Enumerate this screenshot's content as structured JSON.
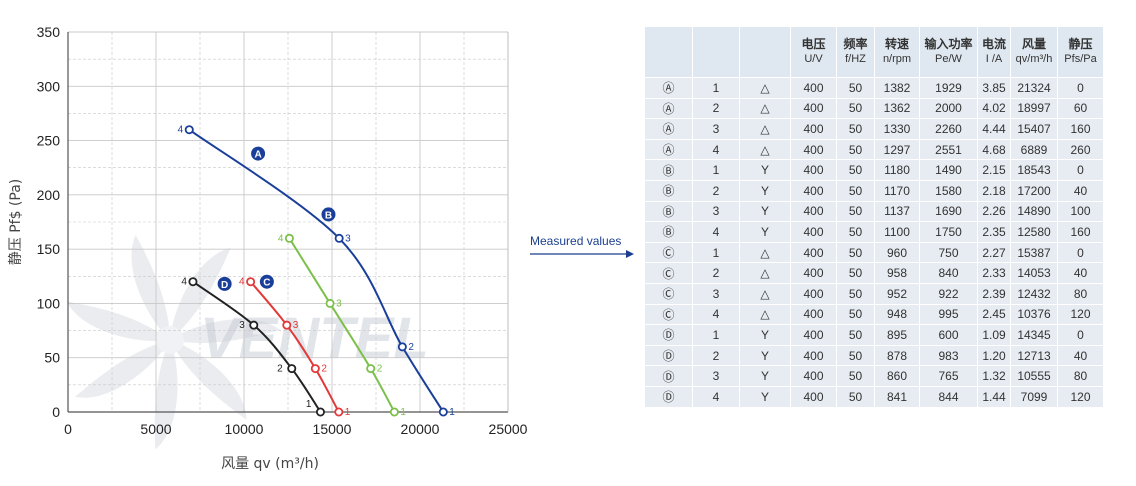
{
  "chart_data": {
    "type": "line",
    "xlabel": "风量 qv (m³/h)",
    "ylabel": "静压 Pf$ (Pa)",
    "xlim": [
      0,
      25000
    ],
    "ylim": [
      0,
      350
    ],
    "x_ticks": [
      "0",
      "5000",
      "10000",
      "15000",
      "20000",
      "25000"
    ],
    "y_ticks": [
      "0",
      "50",
      "100",
      "150",
      "200",
      "250",
      "300",
      "350"
    ],
    "grid": true,
    "watermark": "VENTEL",
    "series": [
      {
        "name": "A",
        "color": "#1a3f9a",
        "points": [
          {
            "x": 21324,
            "y": 0,
            "label": "1"
          },
          {
            "x": 18997,
            "y": 60,
            "label": "2"
          },
          {
            "x": 15407,
            "y": 160,
            "label": "3"
          },
          {
            "x": 6889,
            "y": 260,
            "label": "4"
          }
        ]
      },
      {
        "name": "B",
        "color": "#7cc04b",
        "points": [
          {
            "x": 18543,
            "y": 0,
            "label": "1"
          },
          {
            "x": 17200,
            "y": 40,
            "label": "2"
          },
          {
            "x": 14890,
            "y": 100,
            "label": "3"
          },
          {
            "x": 12580,
            "y": 160,
            "label": "4"
          }
        ]
      },
      {
        "name": "C",
        "color": "#e23a3a",
        "points": [
          {
            "x": 15387,
            "y": 0,
            "label": "1"
          },
          {
            "x": 14053,
            "y": 40,
            "label": "2"
          },
          {
            "x": 12432,
            "y": 80,
            "label": "3"
          },
          {
            "x": 10376,
            "y": 120,
            "label": "4"
          }
        ]
      },
      {
        "name": "D",
        "color": "#222222",
        "points": [
          {
            "x": 14345,
            "y": 0,
            "label": "1"
          },
          {
            "x": 12713,
            "y": 40,
            "label": "2"
          },
          {
            "x": 10555,
            "y": 80,
            "label": "3"
          },
          {
            "x": 7099,
            "y": 120,
            "label": "4"
          }
        ]
      }
    ],
    "series_badges": [
      {
        "series": "A",
        "text": "A",
        "x": 10800,
        "y": 238,
        "color": "#1a3f9a"
      },
      {
        "series": "B",
        "text": "B",
        "x": 14800,
        "y": 182,
        "color": "#1a3f9a"
      },
      {
        "series": "C",
        "text": "C",
        "x": 11300,
        "y": 120,
        "color": "#1a3f9a"
      },
      {
        "series": "D",
        "text": "D",
        "x": 8900,
        "y": 118,
        "color": "#1a3f9a"
      }
    ]
  },
  "arrow_label": "Measured values",
  "table": {
    "headers": [
      {
        "zh": "",
        "unit": ""
      },
      {
        "zh": "",
        "unit": ""
      },
      {
        "zh": "",
        "unit": ""
      },
      {
        "zh": "电压",
        "unit": "U/V"
      },
      {
        "zh": "频率",
        "unit": "f/HZ"
      },
      {
        "zh": "转速",
        "unit": "n/rpm"
      },
      {
        "zh": "输入功率",
        "unit": "Pe/W"
      },
      {
        "zh": "电流",
        "unit": "I /A"
      },
      {
        "zh": "风量",
        "unit": "qv/m³/h"
      },
      {
        "zh": "静压",
        "unit": "Pfs/Pa"
      }
    ],
    "rows": [
      [
        "Ⓐ",
        "1",
        "△",
        "400",
        "50",
        "1382",
        "1929",
        "3.85",
        "21324",
        "0"
      ],
      [
        "Ⓐ",
        "2",
        "△",
        "400",
        "50",
        "1362",
        "2000",
        "4.02",
        "18997",
        "60"
      ],
      [
        "Ⓐ",
        "3",
        "△",
        "400",
        "50",
        "1330",
        "2260",
        "4.44",
        "15407",
        "160"
      ],
      [
        "Ⓐ",
        "4",
        "△",
        "400",
        "50",
        "1297",
        "2551",
        "4.68",
        "6889",
        "260"
      ],
      [
        "Ⓑ",
        "1",
        "Y",
        "400",
        "50",
        "1180",
        "1490",
        "2.15",
        "18543",
        "0"
      ],
      [
        "Ⓑ",
        "2",
        "Y",
        "400",
        "50",
        "1170",
        "1580",
        "2.18",
        "17200",
        "40"
      ],
      [
        "Ⓑ",
        "3",
        "Y",
        "400",
        "50",
        "1137",
        "1690",
        "2.26",
        "14890",
        "100"
      ],
      [
        "Ⓑ",
        "4",
        "Y",
        "400",
        "50",
        "1100",
        "1750",
        "2.35",
        "12580",
        "160"
      ],
      [
        "Ⓒ",
        "1",
        "△",
        "400",
        "50",
        "960",
        "750",
        "2.27",
        "15387",
        "0"
      ],
      [
        "Ⓒ",
        "2",
        "△",
        "400",
        "50",
        "958",
        "840",
        "2.33",
        "14053",
        "40"
      ],
      [
        "Ⓒ",
        "3",
        "△",
        "400",
        "50",
        "952",
        "922",
        "2.39",
        "12432",
        "80"
      ],
      [
        "Ⓒ",
        "4",
        "△",
        "400",
        "50",
        "948",
        "995",
        "2.45",
        "10376",
        "120"
      ],
      [
        "Ⓓ",
        "1",
        "Y",
        "400",
        "50",
        "895",
        "600",
        "1.09",
        "14345",
        "0"
      ],
      [
        "Ⓓ",
        "2",
        "Y",
        "400",
        "50",
        "878",
        "983",
        "1.20",
        "12713",
        "40"
      ],
      [
        "Ⓓ",
        "3",
        "Y",
        "400",
        "50",
        "860",
        "765",
        "1.32",
        "10555",
        "80"
      ],
      [
        "Ⓓ",
        "4",
        "Y",
        "400",
        "50",
        "841",
        "844",
        "1.44",
        "7099",
        "120"
      ]
    ]
  }
}
